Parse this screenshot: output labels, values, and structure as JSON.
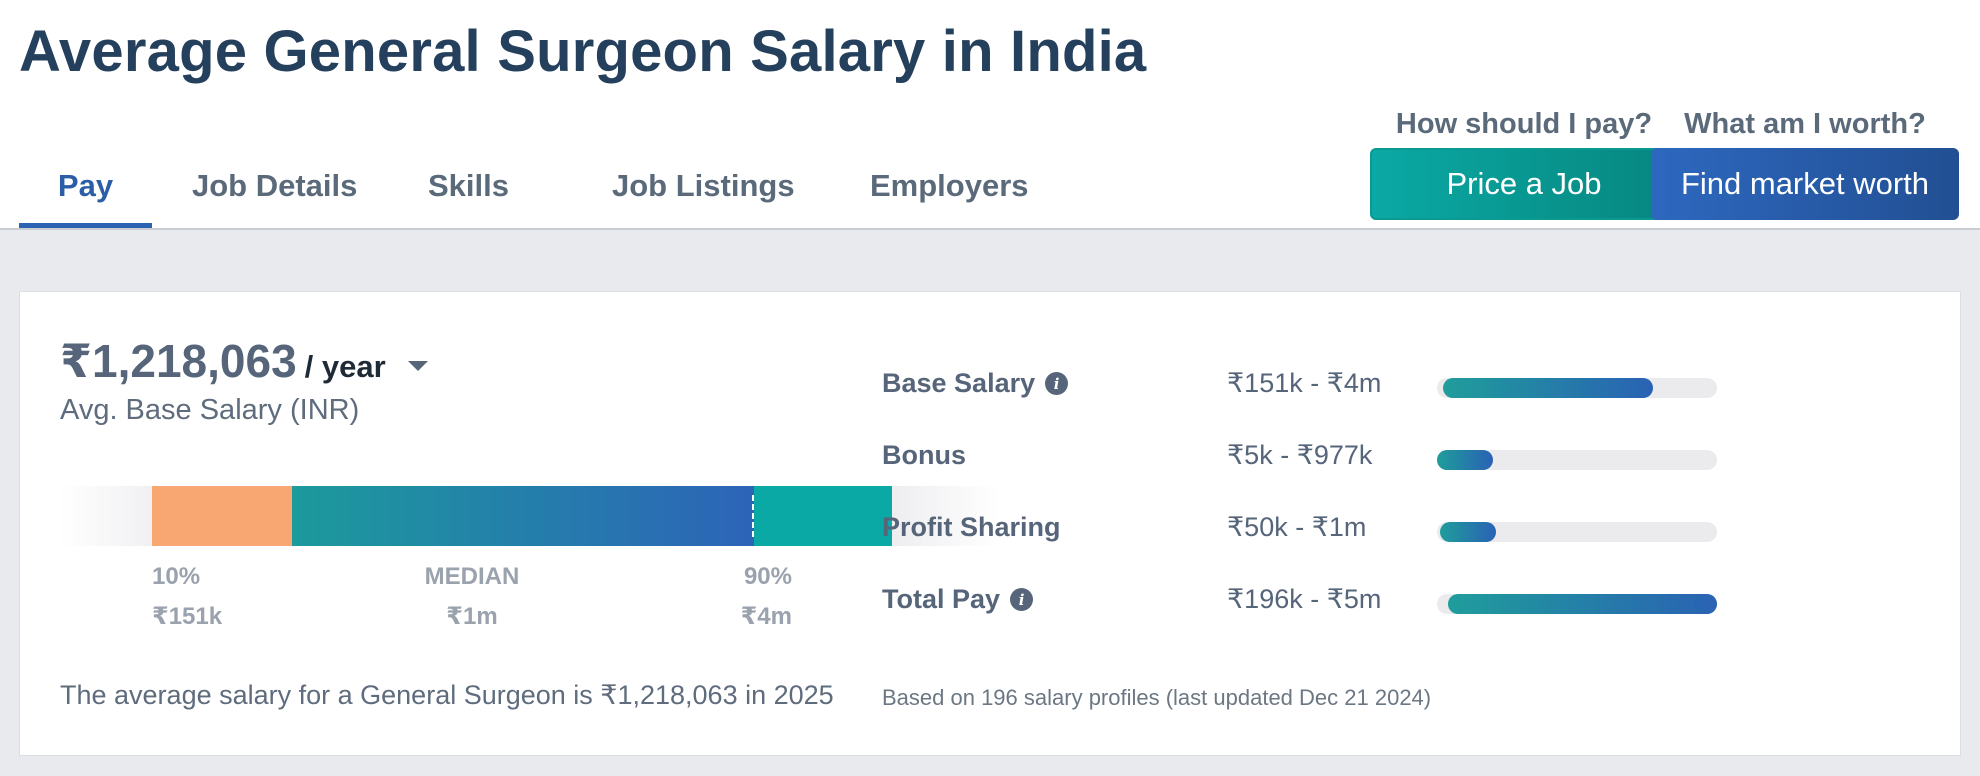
{
  "page": {
    "title": "Average General Surgeon Salary in India"
  },
  "tabs": [
    {
      "label": "Pay",
      "active": true
    },
    {
      "label": "Job Details",
      "active": false
    },
    {
      "label": "Skills",
      "active": false
    },
    {
      "label": "Job Listings",
      "active": false
    },
    {
      "label": "Employers",
      "active": false
    }
  ],
  "cta": {
    "employer": {
      "question": "How should I pay?",
      "button": "Price a Job",
      "color": "#0ba9a4"
    },
    "employee": {
      "question": "What am I worth?",
      "button": "Find market worth",
      "color": "#2d68bf"
    }
  },
  "salary": {
    "amount": "₹1,218,063",
    "period": "/ year",
    "caption": "Avg. Base Salary (INR)",
    "range": {
      "p10_label": "10%",
      "p10_value": "₹151k",
      "median_label": "MEDIAN",
      "median_value": "₹1m",
      "p90_label": "90%",
      "p90_value": "₹4m"
    },
    "summary": "The average salary for a General Surgeon is ₹1,218,063 in 2025"
  },
  "compensation": [
    {
      "label": "Base Salary",
      "info": true,
      "range": "₹151k - ₹4m",
      "fill_start": 0.02,
      "fill_end": 0.77
    },
    {
      "label": "Bonus",
      "info": false,
      "range": "₹5k - ₹977k",
      "fill_start": 0.0,
      "fill_end": 0.2
    },
    {
      "label": "Profit Sharing",
      "info": false,
      "range": "₹50k - ₹1m",
      "fill_start": 0.01,
      "fill_end": 0.21
    },
    {
      "label": "Total Pay",
      "info": true,
      "range": "₹196k - ₹5m",
      "fill_start": 0.04,
      "fill_end": 1.0
    }
  ],
  "footnote": "Based on 196 salary profiles (last updated Dec 21 2024)",
  "colors": {
    "accent": "#2c62b2",
    "teal": "#0aa9a6",
    "orange": "#f8a672",
    "title": "#25405c"
  }
}
